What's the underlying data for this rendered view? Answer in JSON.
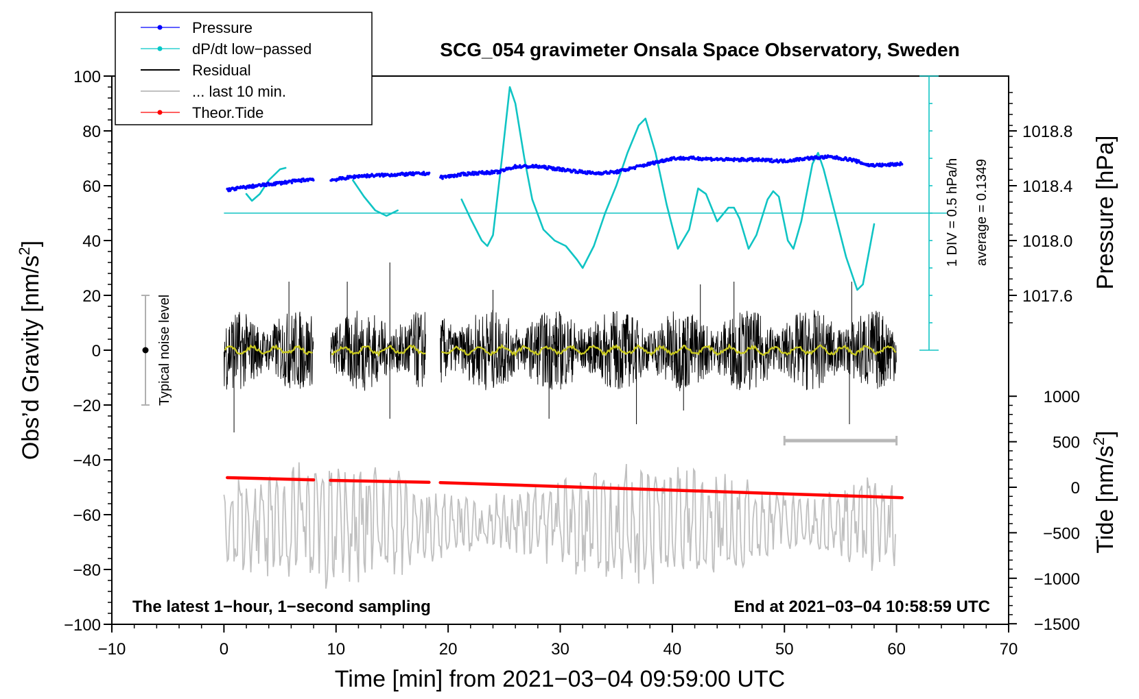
{
  "chart_data": {
    "type": "line",
    "title": "SCG_054 gravimeter Onsala Space Observatory, Sweden",
    "xlabel": "Time [min] from 2021−03−04 09:59:00 UTC",
    "ylabel": "Obs’d Gravity [nm/s",
    "ylabel_sup": "2",
    "ylabel_end": "]",
    "xlim": [
      -10,
      70
    ],
    "ylim": [
      -100,
      100
    ],
    "x_ticks": [
      -10,
      0,
      10,
      20,
      30,
      40,
      50,
      60,
      70
    ],
    "x_tick_labels": [
      "−10",
      "0",
      "10",
      "20",
      "30",
      "40",
      "50",
      "60",
      "70"
    ],
    "y_ticks": [
      -100,
      -80,
      -60,
      -40,
      -20,
      0,
      20,
      40,
      60,
      80,
      100
    ],
    "y_tick_labels": [
      "−100",
      "−80",
      "−60",
      "−40",
      "−20",
      "0",
      "20",
      "40",
      "60",
      "80",
      "100"
    ],
    "pressure_axis": {
      "label": "Pressure [hPa]",
      "ticks": [
        1018.8,
        1018.4,
        1018.0,
        1017.6
      ],
      "tick_labels": [
        "1018.8",
        "1018.4",
        "1018.0",
        "1017.6"
      ]
    },
    "tide_axis": {
      "label": "Tide [nm/s",
      "label_sup": "2",
      "label_end": "]",
      "ticks": [
        1000,
        500,
        0,
        -500,
        -1000,
        -1500
      ],
      "tick_labels": [
        "1000",
        "500",
        "0",
        "−500",
        "−1000",
        "−1500"
      ]
    },
    "legend": {
      "placement": "top-left",
      "entries": [
        {
          "name": "Pressure",
          "color": "#0000ff",
          "marker": "dot"
        },
        {
          "name": "dP/dt low−passed",
          "color": "#00c8c8",
          "marker": "dot"
        },
        {
          "name": "Residual",
          "color": "#000000",
          "marker": "none"
        },
        {
          "name": "... last 10 min.",
          "color": "#c0c0c0",
          "marker": "none"
        },
        {
          "name": "Theor.Tide",
          "color": "#ff0000",
          "marker": "dot"
        }
      ]
    },
    "annotations": {
      "bottom_left": "The latest 1−hour, 1−second sampling",
      "bottom_right": "End at 2021−03−04 10:58:59 UTC",
      "noise": "Typical noise level",
      "dpdt_scale": "1 DIV = 0.5 hPa/h",
      "dpdt_average": "average = 0.1349"
    },
    "colors": {
      "pressure": "#0000ff",
      "dpdt": "#10c4c4",
      "residual": "#000000",
      "residual_mean": "#c8c820",
      "last10": "#c0c0c0",
      "tide": "#ff0000"
    },
    "pressure_series": {
      "gaps": [
        [
          8.0,
          9.5
        ],
        [
          18.3,
          19.3
        ]
      ],
      "points": [
        [
          0.3,
          58.5
        ],
        [
          2.0,
          59.5
        ],
        [
          4.0,
          60.5
        ],
        [
          6.0,
          61.5
        ],
        [
          8.0,
          62.5
        ],
        [
          9.5,
          62.0
        ],
        [
          12.0,
          63.5
        ],
        [
          15.0,
          64.0
        ],
        [
          18.3,
          64.5
        ],
        [
          19.3,
          63.0
        ],
        [
          22.0,
          64.5
        ],
        [
          24.5,
          65.0
        ],
        [
          26.0,
          67.0
        ],
        [
          28.0,
          67.0
        ],
        [
          30.0,
          66.0
        ],
        [
          32.0,
          65.0
        ],
        [
          33.0,
          64.5
        ],
        [
          35.0,
          65.0
        ],
        [
          37.0,
          67.0
        ],
        [
          40.0,
          70.0
        ],
        [
          42.0,
          70.0
        ],
        [
          45.0,
          69.5
        ],
        [
          47.0,
          69.5
        ],
        [
          50.0,
          69.0
        ],
        [
          52.0,
          70.0
        ],
        [
          54.0,
          70.5
        ],
        [
          56.0,
          69.5
        ],
        [
          57.5,
          67.5
        ],
        [
          59.0,
          67.5
        ],
        [
          60.5,
          68.0
        ]
      ]
    },
    "dpdt_series": {
      "baseline_y": 50,
      "segments": [
        [
          [
            2.0,
            57.0
          ],
          [
            2.5,
            54.5
          ],
          [
            3.2,
            57.0
          ],
          [
            4.0,
            62.0
          ],
          [
            5.0,
            66.0
          ],
          [
            5.5,
            66.5
          ]
        ],
        [
          [
            11.5,
            62.0
          ],
          [
            12.5,
            56.0
          ],
          [
            13.5,
            51.0
          ],
          [
            14.5,
            49.0
          ],
          [
            15.5,
            51.0
          ]
        ],
        [
          [
            21.2,
            55.0
          ],
          [
            22.0,
            48.0
          ],
          [
            23.0,
            40.0
          ],
          [
            23.5,
            38.0
          ],
          [
            24.0,
            42.0
          ],
          [
            24.8,
            70.0
          ],
          [
            25.5,
            96.0
          ],
          [
            26.0,
            90.0
          ],
          [
            26.8,
            70.0
          ],
          [
            27.5,
            55.0
          ],
          [
            28.5,
            44.0
          ],
          [
            29.5,
            40.0
          ],
          [
            30.5,
            38.0
          ],
          [
            31.5,
            33.0
          ],
          [
            32.0,
            30.0
          ],
          [
            33.0,
            38.0
          ],
          [
            34.0,
            50.0
          ],
          [
            35.0,
            60.0
          ],
          [
            36.0,
            72.0
          ],
          [
            37.0,
            82.0
          ],
          [
            37.6,
            84.5
          ],
          [
            38.5,
            72.0
          ],
          [
            39.5,
            53.0
          ],
          [
            40.5,
            37.0
          ],
          [
            41.5,
            44.0
          ],
          [
            42.3,
            59.0
          ],
          [
            43.0,
            57.0
          ],
          [
            44.0,
            47.0
          ],
          [
            45.0,
            52.0
          ],
          [
            45.5,
            52.0
          ],
          [
            46.0,
            48.0
          ],
          [
            46.8,
            37.0
          ],
          [
            47.5,
            42.0
          ],
          [
            48.5,
            55.0
          ],
          [
            49.0,
            58.0
          ],
          [
            49.5,
            56.0
          ],
          [
            50.3,
            40.0
          ],
          [
            50.8,
            37.0
          ],
          [
            51.5,
            47.0
          ],
          [
            52.5,
            68.0
          ],
          [
            53.0,
            72.0
          ],
          [
            53.5,
            66.0
          ],
          [
            54.5,
            50.0
          ],
          [
            55.5,
            34.0
          ],
          [
            56.5,
            22.0
          ],
          [
            57.0,
            24.0
          ],
          [
            58.0,
            46.0
          ]
        ]
      ]
    },
    "residual_series": {
      "segments": [
        [
          0.0,
          8.0
        ],
        [
          9.5,
          18.0
        ],
        [
          19.3,
          60.0
        ]
      ],
      "envelope": 15,
      "spikes": [
        [
          5.8,
          25
        ],
        [
          11.0,
          25
        ],
        [
          14.8,
          32
        ],
        [
          14.8,
          -25
        ],
        [
          0.9,
          -30
        ],
        [
          29.0,
          -25
        ],
        [
          36.8,
          -27
        ],
        [
          41.0,
          -22
        ],
        [
          55.8,
          -27
        ],
        [
          56.0,
          25
        ],
        [
          45.5,
          25
        ],
        [
          42.5,
          24
        ],
        [
          24.0,
          22
        ]
      ]
    },
    "last10_series": {
      "x_range": [
        0.0,
        60.0
      ],
      "center": -63,
      "min": -87,
      "max": -36
    },
    "tide_series": {
      "points": [
        [
          0.3,
          -46.5
        ],
        [
          8.0,
          -47.3
        ],
        [
          9.5,
          -47.5
        ],
        [
          18.3,
          -48.2
        ],
        [
          19.3,
          -48.3
        ],
        [
          60.5,
          -53.8
        ]
      ]
    },
    "noise_bar": {
      "x": -7.0,
      "low": -20,
      "high": 20,
      "center": 0
    },
    "window_bar": {
      "from": 50,
      "to": 60,
      "y": -33
    }
  }
}
